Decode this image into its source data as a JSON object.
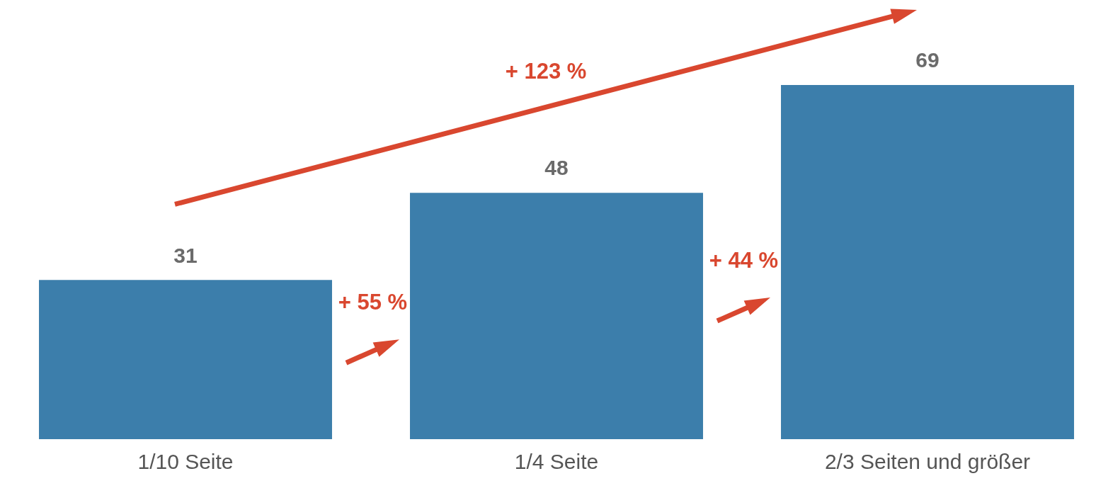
{
  "chart_data": {
    "type": "bar",
    "categories": [
      "1/10 Seite",
      "1/4 Seite",
      "2/3 Seiten und größer"
    ],
    "values": [
      31,
      48,
      69
    ],
    "color": "#3c7eab",
    "data_labels": true,
    "legend": false,
    "grid": false,
    "annotations": [
      "+ 55 %",
      "+ 44 %",
      "+ 123 %"
    ]
  }
}
